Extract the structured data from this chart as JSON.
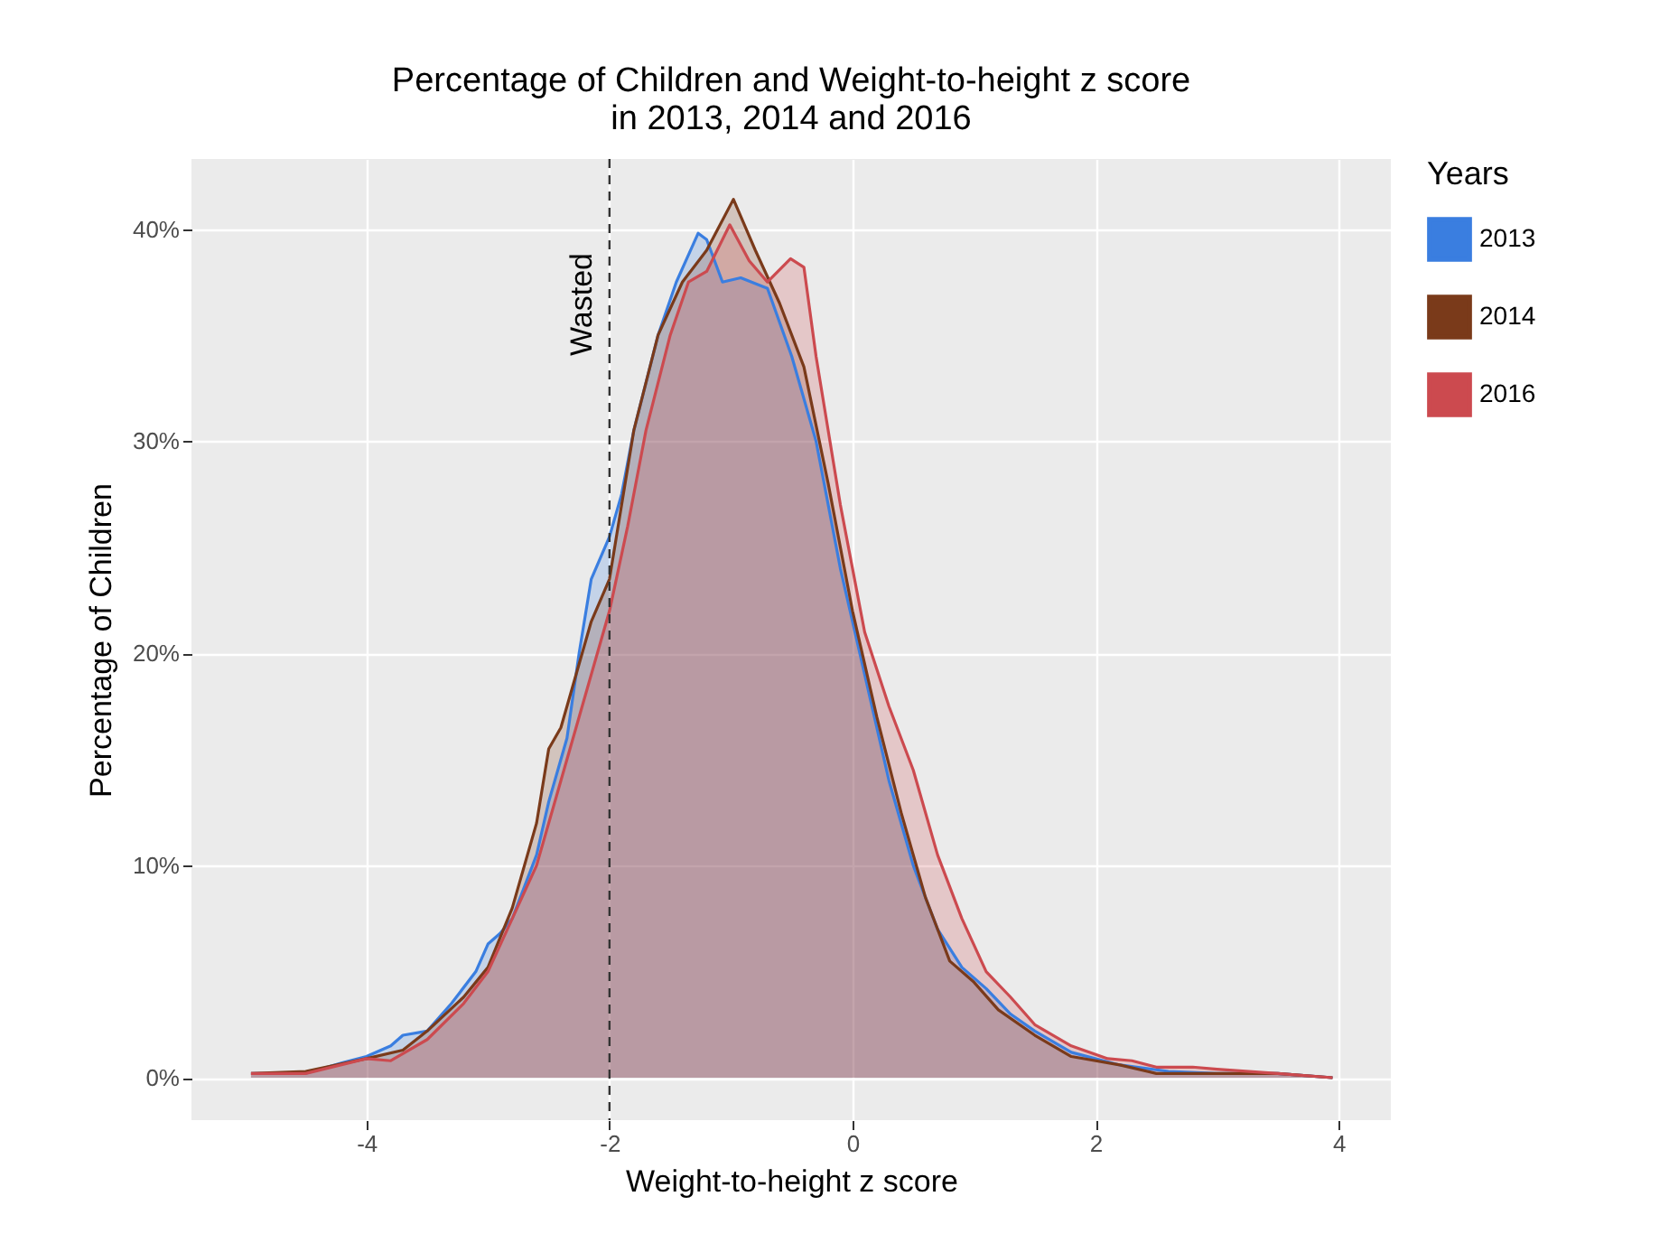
{
  "chart_data": {
    "type": "area",
    "title": "Percentage of Children and Weight-to-height z score\nin 2013, 2014 and 2016",
    "xlabel": "Weight-to-height z score",
    "ylabel": "Percentage of Children",
    "legend_title": "Years",
    "legend": "right",
    "grid": true,
    "xlim": [
      -5.44,
      4.43
    ],
    "xticks": [
      -4,
      -2,
      0,
      2,
      4
    ],
    "ylim": [
      -2,
      43.3
    ],
    "yticks": [
      {
        "value": 0,
        "label": "0%"
      },
      {
        "value": 10,
        "label": "10%"
      },
      {
        "value": 20,
        "label": "20%"
      },
      {
        "value": 30,
        "label": "30%"
      },
      {
        "value": 40,
        "label": "40%"
      }
    ],
    "ref_lines": [
      {
        "axis": "x",
        "value": -2,
        "label": "Wasted",
        "line_style": "dashed",
        "color": "#333333"
      }
    ],
    "series": [
      {
        "name": "2013",
        "color": "#3a7ee0",
        "x": [
          -4.95,
          -4.5,
          -4.2,
          -4,
          -3.8,
          -3.7,
          -3.5,
          -3.3,
          -3.1,
          -3,
          -2.9,
          -2.8,
          -2.6,
          -2.5,
          -2.35,
          -2.25,
          -2.15,
          -2,
          -1.9,
          -1.8,
          -1.6,
          -1.45,
          -1.27,
          -1.2,
          -1.07,
          -0.92,
          -0.7,
          -0.5,
          -0.3,
          -0.1,
          0.1,
          0.3,
          0.5,
          0.7,
          0.9,
          1.1,
          1.3,
          1.5,
          1.8,
          2.2,
          2.6,
          3,
          3.5,
          3.95
        ],
        "values": [
          0.2,
          0.2,
          0.7,
          1,
          1.5,
          2,
          2.2,
          3.5,
          5,
          6.3,
          6.8,
          7.5,
          10.5,
          13,
          16,
          20,
          23.5,
          25.5,
          27.5,
          30.5,
          35,
          37.5,
          39.8,
          39.5,
          37.5,
          37.7,
          37.2,
          34,
          30,
          24,
          19,
          14,
          10,
          7,
          5.2,
          4.2,
          3,
          2.2,
          1.2,
          0.6,
          0.3,
          0.2,
          0.2,
          0
        ]
      },
      {
        "name": "2014",
        "color": "#7a3a1a",
        "x": [
          -4.95,
          -4.5,
          -4,
          -3.7,
          -3.5,
          -3.2,
          -3,
          -2.8,
          -2.6,
          -2.5,
          -2.4,
          -2.3,
          -2.15,
          -2,
          -1.9,
          -1.8,
          -1.6,
          -1.4,
          -1.2,
          -0.98,
          -0.8,
          -0.6,
          -0.4,
          -0.2,
          0,
          0.2,
          0.4,
          0.6,
          0.8,
          1,
          1.2,
          1.5,
          1.8,
          2.2,
          2.5,
          3,
          3.5,
          3.95
        ],
        "values": [
          0.2,
          0.3,
          0.9,
          1.3,
          2.2,
          3.8,
          5.2,
          8,
          12,
          15.5,
          16.5,
          18.5,
          21.5,
          23.5,
          27,
          30.5,
          35,
          37.5,
          39,
          41.4,
          39,
          36.5,
          33.5,
          28,
          22,
          17,
          12.5,
          8.5,
          5.5,
          4.5,
          3.2,
          2,
          1,
          0.6,
          0.2,
          0.2,
          0.2,
          0
        ]
      },
      {
        "name": "2016",
        "color": "#cc4a4f",
        "x": [
          -4.95,
          -4.5,
          -4,
          -3.8,
          -3.5,
          -3.2,
          -3,
          -2.8,
          -2.6,
          -2.4,
          -2.2,
          -2,
          -1.85,
          -1.7,
          -1.5,
          -1.35,
          -1.2,
          -1.01,
          -0.85,
          -0.7,
          -0.51,
          -0.4,
          -0.3,
          -0.1,
          0.1,
          0.3,
          0.5,
          0.7,
          0.9,
          1.1,
          1.3,
          1.5,
          1.8,
          2.1,
          2.3,
          2.5,
          2.8,
          3,
          3.5,
          3.95
        ],
        "values": [
          0.2,
          0.2,
          0.9,
          0.8,
          1.8,
          3.5,
          5,
          7.5,
          10,
          14,
          18,
          22,
          26,
          30.5,
          35,
          37.5,
          38,
          40.2,
          38.5,
          37.5,
          38.6,
          38.2,
          34,
          27,
          21,
          17.5,
          14.5,
          10.5,
          7.5,
          5,
          3.8,
          2.5,
          1.5,
          0.9,
          0.8,
          0.5,
          0.5,
          0.4,
          0.2,
          0
        ]
      }
    ]
  }
}
